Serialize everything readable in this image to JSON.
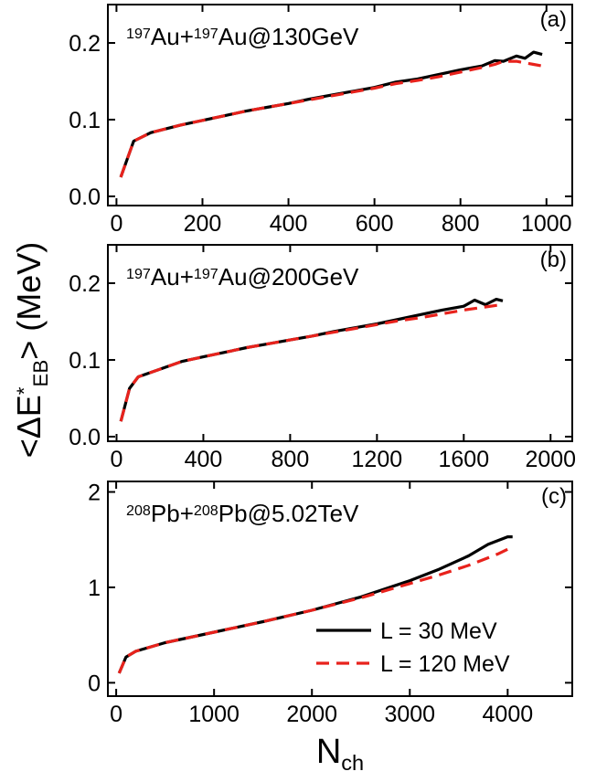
{
  "axis_labels": {
    "ylabel": [
      {
        "text": "<ΔE",
        "script": "none"
      },
      {
        "text": "*",
        "script": "sup"
      },
      {
        "text": "EB",
        "script": "sub"
      },
      {
        "text": "> (MeV)",
        "script": "none"
      }
    ],
    "xlabel": [
      {
        "text": "N",
        "script": "none"
      },
      {
        "text": "ch",
        "script": "sub"
      }
    ]
  },
  "chart_data": [
    {
      "type": "line",
      "panel_label": "(a)",
      "annotation": [
        {
          "text": "197",
          "script": "sup"
        },
        {
          "text": "Au+",
          "script": "none"
        },
        {
          "text": "197",
          "script": "sup"
        },
        {
          "text": "Au@130GeV",
          "script": "none"
        }
      ],
      "x": [
        10,
        40,
        80,
        150,
        200,
        250,
        300,
        350,
        400,
        450,
        500,
        550,
        600,
        650,
        700,
        750,
        800,
        850,
        880,
        900,
        930,
        950,
        970,
        990
      ],
      "series": [
        {
          "color": "#000000",
          "dash": false,
          "values": [
            0.025,
            0.072,
            0.083,
            0.093,
            0.099,
            0.105,
            0.111,
            0.116,
            0.121,
            0.127,
            0.132,
            0.137,
            0.142,
            0.149,
            0.153,
            0.159,
            0.165,
            0.17,
            0.177,
            0.176,
            0.183,
            0.18,
            0.188,
            0.185
          ]
        },
        {
          "color": "#e8221c",
          "dash": true,
          "values": [
            0.025,
            0.072,
            0.083,
            0.093,
            0.099,
            0.105,
            0.111,
            0.116,
            0.121,
            0.126,
            0.131,
            0.136,
            0.141,
            0.147,
            0.151,
            0.156,
            0.162,
            0.168,
            0.172,
            0.176,
            0.176,
            0.174,
            0.172,
            0.17
          ]
        }
      ],
      "xlim": [
        -20,
        1060
      ],
      "ylim": [
        -0.012,
        0.25
      ],
      "xticks": [
        0,
        200,
        400,
        600,
        800,
        1000
      ],
      "yticks": [
        {
          "value": 0,
          "label": "0.0"
        },
        0.1,
        0.2
      ]
    },
    {
      "type": "line",
      "panel_label": "(b)",
      "annotation": [
        {
          "text": "197",
          "script": "sup"
        },
        {
          "text": "Au+",
          "script": "none"
        },
        {
          "text": "197",
          "script": "sup"
        },
        {
          "text": "Au@200GeV",
          "script": "none"
        }
      ],
      "x": [
        20,
        60,
        100,
        200,
        300,
        400,
        500,
        600,
        700,
        800,
        900,
        1000,
        1100,
        1200,
        1300,
        1400,
        1500,
        1600,
        1650,
        1700,
        1750,
        1780
      ],
      "series": [
        {
          "color": "#000000",
          "dash": false,
          "values": [
            0.02,
            0.063,
            0.078,
            0.088,
            0.098,
            0.104,
            0.11,
            0.116,
            0.121,
            0.126,
            0.131,
            0.137,
            0.142,
            0.147,
            0.153,
            0.159,
            0.165,
            0.17,
            0.178,
            0.172,
            0.179,
            0.177
          ]
        },
        {
          "color": "#e8221c",
          "dash": true,
          "values": [
            0.02,
            0.063,
            0.078,
            0.088,
            0.098,
            0.104,
            0.11,
            0.116,
            0.121,
            0.126,
            0.131,
            0.136,
            0.141,
            0.146,
            0.151,
            0.155,
            0.16,
            0.165,
            0.167,
            0.169,
            0.171,
            0.172
          ]
        }
      ],
      "xlim": [
        -40,
        2100
      ],
      "ylim": [
        -0.006,
        0.25
      ],
      "xticks": [
        0,
        400,
        800,
        1200,
        1600,
        2000
      ],
      "yticks": [
        {
          "value": 0,
          "label": "0.0"
        },
        0.1,
        0.2
      ]
    },
    {
      "type": "line",
      "panel_label": "(c)",
      "annotation": [
        {
          "text": "208",
          "script": "sup"
        },
        {
          "text": "Pb+",
          "script": "none"
        },
        {
          "text": "208",
          "script": "sup"
        },
        {
          "text": "Pb@5.02TeV",
          "script": "none"
        }
      ],
      "x": [
        30,
        100,
        200,
        500,
        1000,
        1500,
        2000,
        2500,
        3000,
        3300,
        3600,
        3800,
        3900,
        4000,
        4050
      ],
      "series": [
        {
          "name": "L = 30 MeV",
          "color": "#000000",
          "dash": false,
          "values": [
            0.1,
            0.27,
            0.33,
            0.42,
            0.53,
            0.64,
            0.76,
            0.9,
            1.07,
            1.19,
            1.33,
            1.45,
            1.49,
            1.53,
            1.53
          ]
        },
        {
          "name": "L = 120 MeV",
          "color": "#e8221c",
          "dash": true,
          "values": [
            0.1,
            0.27,
            0.33,
            0.42,
            0.53,
            0.64,
            0.76,
            0.89,
            1.04,
            1.13,
            1.23,
            1.31,
            1.35,
            1.4,
            1.43
          ]
        }
      ],
      "xlim": [
        -85,
        4660
      ],
      "ylim": [
        -0.14,
        2.11
      ],
      "xticks": [
        0,
        1000,
        2000,
        3000,
        4000
      ],
      "yticks": [
        0,
        1,
        2
      ],
      "legend": "lower right"
    }
  ]
}
